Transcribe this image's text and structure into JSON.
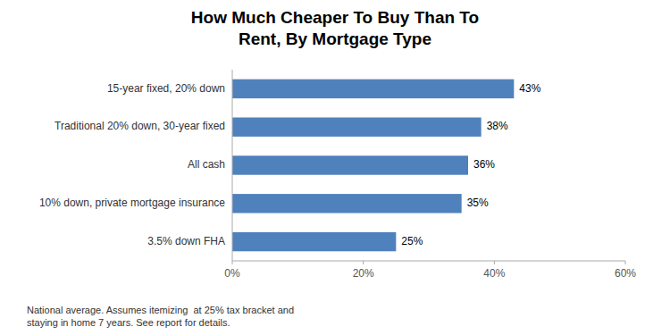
{
  "chart_data": {
    "type": "bar",
    "orientation": "horizontal",
    "title": "How Much Cheaper To Buy Than To\nRent, By Mortgage Type",
    "categories": [
      "3.5% down FHA",
      "10% down, private mortgage insurance",
      "All cash",
      "Traditional 20% down, 30-year fixed",
      "15-year fixed, 20% down"
    ],
    "values": [
      25,
      35,
      36,
      38,
      43
    ],
    "value_labels": [
      "25%",
      "35%",
      "36%",
      "38%",
      "43%"
    ],
    "data_labels": true,
    "color": "#4f81bd",
    "xlim": [
      0,
      60
    ],
    "xticks": [
      {
        "value": 0,
        "label": "0%"
      },
      {
        "value": 20,
        "label": "20%"
      },
      {
        "value": 40,
        "label": "40%"
      },
      {
        "value": 60,
        "label": "60%"
      }
    ],
    "grid": false,
    "footnote": "National average. Assumes itemizing  at 25% tax bracket and\nstaying in home 7 years. See report for details."
  }
}
